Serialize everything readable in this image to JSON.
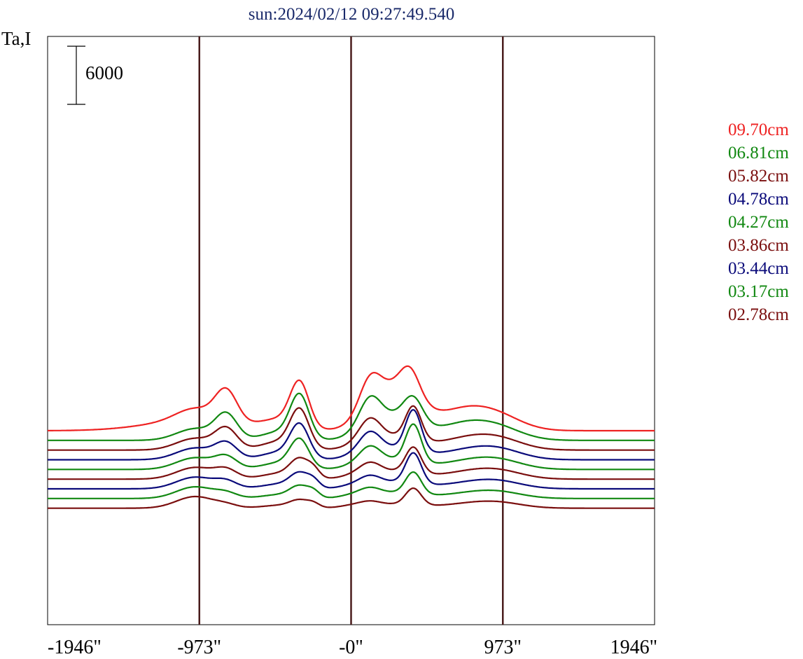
{
  "chart_data": {
    "type": "line",
    "title": "sun:2024/02/12 09:27:49.540",
    "ylabel": "Ta,I",
    "scale_bar_label": "6000",
    "x_ticks": [
      "-1946\"",
      "-973\"",
      "-0\"",
      "973\"",
      "1946\""
    ],
    "x_tick_values": [
      -1946,
      -973,
      0,
      973,
      1946
    ],
    "vlines": [
      -973,
      0,
      973
    ],
    "vline_color": "#4a1c1c",
    "xlim": [
      -1946,
      1946
    ],
    "scale_bar_value": 6000,
    "series": [
      {
        "name": "09.70cm",
        "color": "#ee2222",
        "baseline": 6000,
        "peaks": [
          [
            -1000,
            120,
            1200
          ],
          [
            -1000,
            300,
            1100
          ],
          [
            -800,
            70,
            3200
          ],
          [
            -450,
            120,
            1000
          ],
          [
            -330,
            60,
            4500
          ],
          [
            0,
            80,
            300
          ],
          [
            120,
            70,
            3600
          ],
          [
            300,
            140,
            4700
          ],
          [
            380,
            60,
            2300
          ],
          [
            700,
            160,
            1800
          ],
          [
            930,
            160,
            1500
          ]
        ]
      },
      {
        "name": "06.81cm",
        "color": "#118811",
        "baseline": 5000,
        "peaks": [
          [
            -1000,
            120,
            1200
          ],
          [
            -800,
            70,
            2600
          ],
          [
            -450,
            120,
            900
          ],
          [
            -330,
            60,
            4300
          ],
          [
            0,
            80,
            300
          ],
          [
            120,
            70,
            3300
          ],
          [
            300,
            140,
            2600
          ],
          [
            400,
            60,
            2300
          ],
          [
            700,
            160,
            1400
          ],
          [
            930,
            160,
            1300
          ]
        ]
      },
      {
        "name": "05.82cm",
        "color": "#7a0e0e",
        "baseline": 4000,
        "peaks": [
          [
            -1000,
            120,
            1200
          ],
          [
            -800,
            70,
            2100
          ],
          [
            -450,
            120,
            900
          ],
          [
            -330,
            60,
            3800
          ],
          [
            0,
            80,
            300
          ],
          [
            120,
            70,
            2600
          ],
          [
            300,
            140,
            1400
          ],
          [
            400,
            50,
            3300
          ],
          [
            700,
            160,
            900
          ],
          [
            930,
            160,
            1200
          ]
        ]
      },
      {
        "name": "04.78cm",
        "color": "#0a0a7a",
        "baseline": 3000,
        "peaks": [
          [
            -1000,
            120,
            1200
          ],
          [
            -800,
            70,
            1600
          ],
          [
            -450,
            120,
            800
          ],
          [
            -330,
            60,
            3300
          ],
          [
            0,
            80,
            300
          ],
          [
            120,
            70,
            2300
          ],
          [
            300,
            140,
            1200
          ],
          [
            400,
            50,
            4100
          ],
          [
            700,
            160,
            700
          ],
          [
            930,
            160,
            1100
          ]
        ]
      },
      {
        "name": "04.27cm",
        "color": "#118811",
        "baseline": 2000,
        "peaks": [
          [
            -1000,
            120,
            1200
          ],
          [
            -800,
            70,
            1200
          ],
          [
            -450,
            120,
            700
          ],
          [
            -330,
            60,
            2800
          ],
          [
            0,
            80,
            300
          ],
          [
            120,
            70,
            1900
          ],
          [
            300,
            140,
            1000
          ],
          [
            400,
            50,
            3800
          ],
          [
            700,
            160,
            600
          ],
          [
            930,
            160,
            1000
          ]
        ]
      },
      {
        "name": "03.86cm",
        "color": "#7a0e0e",
        "baseline": 1000,
        "peaks": [
          [
            -1000,
            120,
            1200
          ],
          [
            -800,
            70,
            900
          ],
          [
            -450,
            120,
            600
          ],
          [
            -330,
            60,
            1800
          ],
          [
            -240,
            40,
            800
          ],
          [
            0,
            80,
            300
          ],
          [
            120,
            70,
            1300
          ],
          [
            300,
            140,
            800
          ],
          [
            400,
            50,
            2600
          ],
          [
            700,
            160,
            500
          ],
          [
            930,
            160,
            900
          ]
        ]
      },
      {
        "name": "03.44cm",
        "color": "#0a0a7a",
        "baseline": 0,
        "peaks": [
          [
            -1000,
            120,
            1200
          ],
          [
            -800,
            70,
            700
          ],
          [
            -450,
            120,
            500
          ],
          [
            -330,
            60,
            1400
          ],
          [
            -240,
            40,
            700
          ],
          [
            0,
            80,
            300
          ],
          [
            120,
            70,
            1000
          ],
          [
            300,
            140,
            700
          ],
          [
            400,
            50,
            3100
          ],
          [
            700,
            160,
            400
          ],
          [
            930,
            160,
            800
          ]
        ]
      },
      {
        "name": "03.17cm",
        "color": "#118811",
        "baseline": -1000,
        "peaks": [
          [
            -1000,
            120,
            1200
          ],
          [
            -800,
            70,
            500
          ],
          [
            -450,
            120,
            400
          ],
          [
            -330,
            60,
            1100
          ],
          [
            -240,
            40,
            600
          ],
          [
            0,
            80,
            300
          ],
          [
            120,
            70,
            800
          ],
          [
            300,
            140,
            600
          ],
          [
            400,
            50,
            2200
          ],
          [
            700,
            160,
            350
          ],
          [
            930,
            160,
            700
          ]
        ]
      },
      {
        "name": "02.78cm",
        "color": "#7a0e0e",
        "baseline": -2000,
        "peaks": [
          [
            -1000,
            120,
            1200
          ],
          [
            -800,
            70,
            300
          ],
          [
            -450,
            120,
            300
          ],
          [
            -330,
            60,
            700
          ],
          [
            -240,
            40,
            400
          ],
          [
            0,
            80,
            250
          ],
          [
            120,
            70,
            500
          ],
          [
            300,
            140,
            400
          ],
          [
            400,
            50,
            1700
          ],
          [
            700,
            160,
            300
          ],
          [
            930,
            160,
            600
          ]
        ]
      }
    ]
  }
}
